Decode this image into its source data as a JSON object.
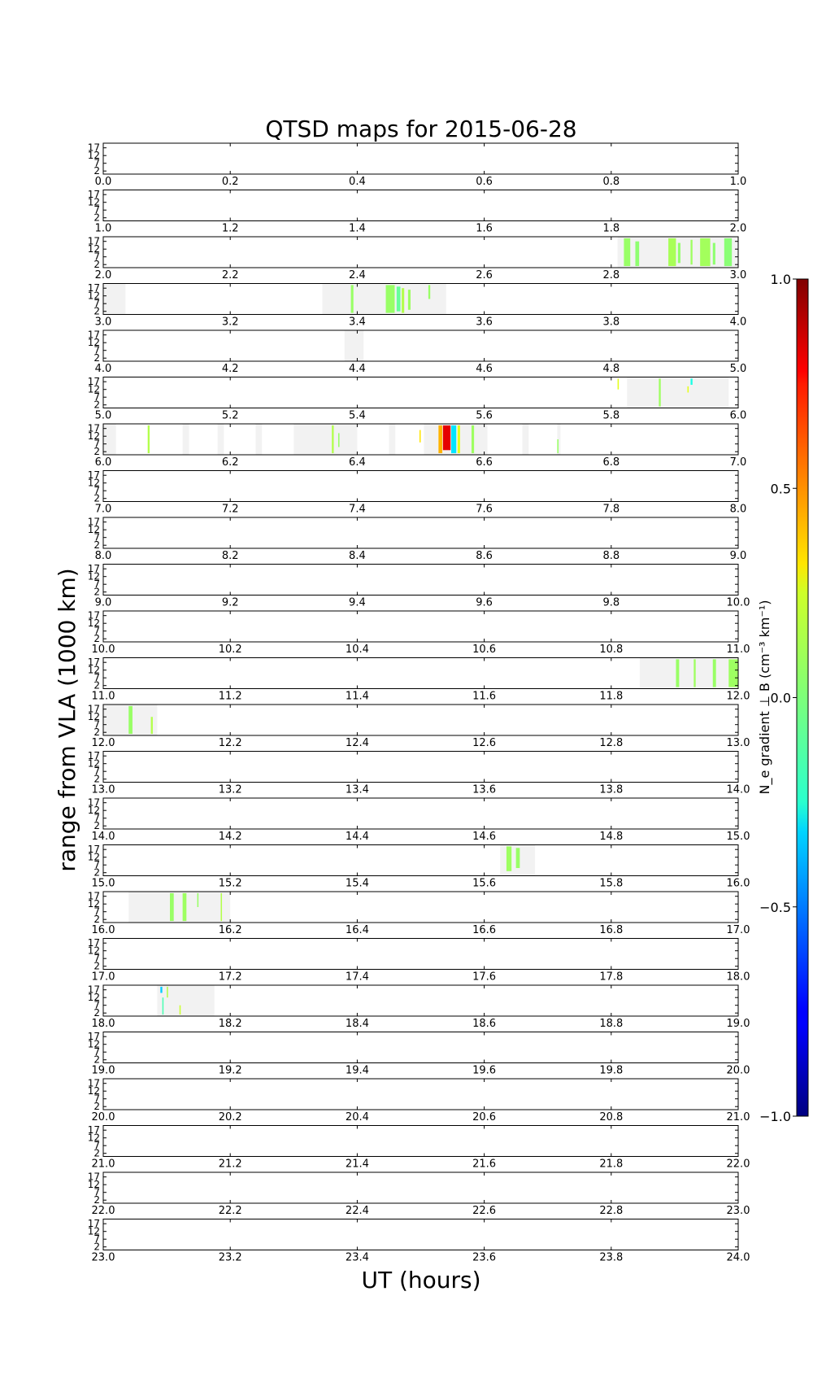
{
  "chart_data": {
    "type": "heatmap",
    "title": "QTSD maps for 2015-06-28",
    "xlabel": "UT (hours)",
    "ylabel": "range from VLA (1000 km)",
    "colorbar_label": "N_e gradient ⊥ B (cm⁻³ km⁻¹)",
    "colorbar": {
      "colormap": "jet",
      "range": [
        -1.0,
        1.0
      ],
      "ticks": [
        "1.0",
        "0.5",
        "0.0",
        "−0.5",
        "−1.0"
      ],
      "tick_values": [
        1.0,
        0.5,
        0.0,
        -0.5,
        -1.0
      ]
    },
    "panels_count": 24,
    "panel_hours": 1,
    "x_tick_step": 0.2,
    "y_ticks": [
      "17",
      "12",
      "7",
      "2"
    ],
    "y_tick_values": [
      17,
      12,
      7,
      2
    ],
    "ylim": [
      0,
      20
    ],
    "grid": false,
    "coverage_color": "#f2f2f2",
    "coverage": [
      {
        "start": 2.81,
        "end": 3.0
      },
      {
        "start": 3.0,
        "end": 3.035
      },
      {
        "start": 3.345,
        "end": 3.54
      },
      {
        "start": 4.38,
        "end": 4.41
      },
      {
        "start": 5.825,
        "end": 5.985
      },
      {
        "start": 6.0,
        "end": 6.02
      },
      {
        "start": 6.13,
        "end": 6.135
      },
      {
        "start": 6.125,
        "end": 6.135
      },
      {
        "start": 6.18,
        "end": 6.19
      },
      {
        "start": 6.24,
        "end": 6.25
      },
      {
        "start": 6.3,
        "end": 6.4
      },
      {
        "start": 6.45,
        "end": 6.46
      },
      {
        "start": 6.505,
        "end": 6.605
      },
      {
        "start": 6.66,
        "end": 6.67
      },
      {
        "start": 6.715,
        "end": 6.72
      },
      {
        "start": 11.845,
        "end": 12.0
      },
      {
        "start": 12.0,
        "end": 12.085
      },
      {
        "start": 15.625,
        "end": 15.68
      },
      {
        "start": 16.04,
        "end": 16.2
      },
      {
        "start": 18.085,
        "end": 18.175
      }
    ],
    "events": [
      {
        "t": 2.82,
        "w": 0.01,
        "value": 0.05,
        "r0": 1,
        "r1": 19
      },
      {
        "t": 2.838,
        "w": 0.006,
        "value": 0.03,
        "r0": 1,
        "r1": 17
      },
      {
        "t": 2.89,
        "w": 0.012,
        "value": 0.08,
        "r0": 1,
        "r1": 19
      },
      {
        "t": 2.905,
        "w": 0.004,
        "value": 0.04,
        "r0": 3,
        "r1": 16
      },
      {
        "t": 2.925,
        "w": 0.003,
        "value": 0.06,
        "r0": 2,
        "r1": 18
      },
      {
        "t": 2.94,
        "w": 0.016,
        "value": 0.07,
        "r0": 1,
        "r1": 19
      },
      {
        "t": 2.96,
        "w": 0.004,
        "value": 0.03,
        "r0": 2,
        "r1": 16
      },
      {
        "t": 2.978,
        "w": 0.012,
        "value": 0.02,
        "r0": 1,
        "r1": 19
      },
      {
        "t": 3.39,
        "w": 0.004,
        "value": 0.05,
        "r0": 1,
        "r1": 19
      },
      {
        "t": 3.445,
        "w": 0.014,
        "value": 0.05,
        "r0": 1,
        "r1": 19
      },
      {
        "t": 3.462,
        "w": 0.006,
        "value": -0.05,
        "r0": 2,
        "r1": 18
      },
      {
        "t": 3.47,
        "w": 0.004,
        "value": 0.1,
        "r0": 1,
        "r1": 17
      },
      {
        "t": 3.48,
        "w": 0.004,
        "value": 0.06,
        "r0": 3,
        "r1": 16
      },
      {
        "t": 3.512,
        "w": 0.003,
        "value": 0.05,
        "r0": 10,
        "r1": 19
      },
      {
        "t": 5.875,
        "w": 0.003,
        "value": 0.06,
        "r0": 1,
        "r1": 19
      },
      {
        "t": 5.81,
        "w": 0.002,
        "value": 0.2,
        "r0": 12,
        "r1": 19
      },
      {
        "t": 5.92,
        "w": 0.002,
        "value": 0.2,
        "r0": 10,
        "r1": 14
      },
      {
        "t": 5.925,
        "w": 0.003,
        "value": -0.2,
        "r0": 15,
        "r1": 19
      },
      {
        "t": 6.07,
        "w": 0.003,
        "value": 0.1,
        "r0": 1,
        "r1": 19
      },
      {
        "t": 6.36,
        "w": 0.003,
        "value": 0.1,
        "r0": 1,
        "r1": 19
      },
      {
        "t": 6.37,
        "w": 0.002,
        "value": 0.05,
        "r0": 5,
        "r1": 14
      },
      {
        "t": 6.498,
        "w": 0.002,
        "value": 0.3,
        "r0": 8,
        "r1": 16
      },
      {
        "t": 6.535,
        "w": 0.012,
        "value": 0.8,
        "r0": 3,
        "r1": 19
      },
      {
        "t": 6.528,
        "w": 0.006,
        "value": 0.4,
        "r0": 1,
        "r1": 19
      },
      {
        "t": 6.548,
        "w": 0.008,
        "value": -0.3,
        "r0": 1,
        "r1": 19
      },
      {
        "t": 6.558,
        "w": 0.004,
        "value": 0.2,
        "r0": 1,
        "r1": 19
      },
      {
        "t": 6.58,
        "w": 0.004,
        "value": 0.06,
        "r0": 1,
        "r1": 19
      },
      {
        "t": 6.715,
        "w": 0.002,
        "value": 0.05,
        "r0": 1,
        "r1": 10
      },
      {
        "t": 11.902,
        "w": 0.005,
        "value": 0.05,
        "r0": 1,
        "r1": 19
      },
      {
        "t": 11.93,
        "w": 0.003,
        "value": 0.06,
        "r0": 1,
        "r1": 19
      },
      {
        "t": 11.96,
        "w": 0.005,
        "value": 0.05,
        "r0": 1,
        "r1": 19
      },
      {
        "t": 11.985,
        "w": 0.015,
        "value": 0.06,
        "r0": 1,
        "r1": 19
      },
      {
        "t": 12.04,
        "w": 0.006,
        "value": 0.05,
        "r0": 1,
        "r1": 19
      },
      {
        "t": 12.075,
        "w": 0.003,
        "value": 0.1,
        "r0": 1,
        "r1": 12
      },
      {
        "t": 15.635,
        "w": 0.008,
        "value": 0.06,
        "r0": 3,
        "r1": 19
      },
      {
        "t": 15.65,
        "w": 0.006,
        "value": 0.05,
        "r0": 5,
        "r1": 18
      },
      {
        "t": 16.105,
        "w": 0.006,
        "value": 0.05,
        "r0": 1,
        "r1": 19
      },
      {
        "t": 16.125,
        "w": 0.006,
        "value": 0.06,
        "r0": 1,
        "r1": 19
      },
      {
        "t": 16.148,
        "w": 0.002,
        "value": 0.05,
        "r0": 10,
        "r1": 19
      },
      {
        "t": 16.185,
        "w": 0.002,
        "value": 0.1,
        "r0": 1,
        "r1": 19
      },
      {
        "t": 18.09,
        "w": 0.003,
        "value": -0.35,
        "r0": 15,
        "r1": 19
      },
      {
        "t": 18.093,
        "w": 0.002,
        "value": -0.1,
        "r0": 1,
        "r1": 12
      },
      {
        "t": 18.1,
        "w": 0.002,
        "value": 0.1,
        "r0": 12,
        "r1": 19
      },
      {
        "t": 18.12,
        "w": 0.002,
        "value": 0.15,
        "r0": 1,
        "r1": 7
      }
    ]
  }
}
